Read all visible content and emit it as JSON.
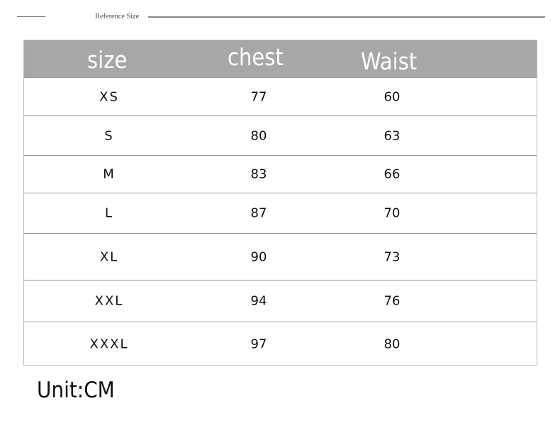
{
  "title": "Reference Size",
  "table": {
    "headers": [
      "size",
      "chest",
      "Waist"
    ],
    "rows": [
      [
        "XS",
        "77",
        "60"
      ],
      [
        "S",
        "80",
        "63"
      ],
      [
        "M",
        "83",
        "66"
      ],
      [
        "L",
        "87",
        "70"
      ],
      [
        "XL",
        "90",
        "73"
      ],
      [
        "XXL",
        "94",
        "76"
      ],
      [
        "XXXL",
        "97",
        "80"
      ]
    ]
  },
  "unit": "Unit:CM",
  "colors": {
    "header_bg": "#a7a7a7",
    "header_text": "#ffffff"
  }
}
